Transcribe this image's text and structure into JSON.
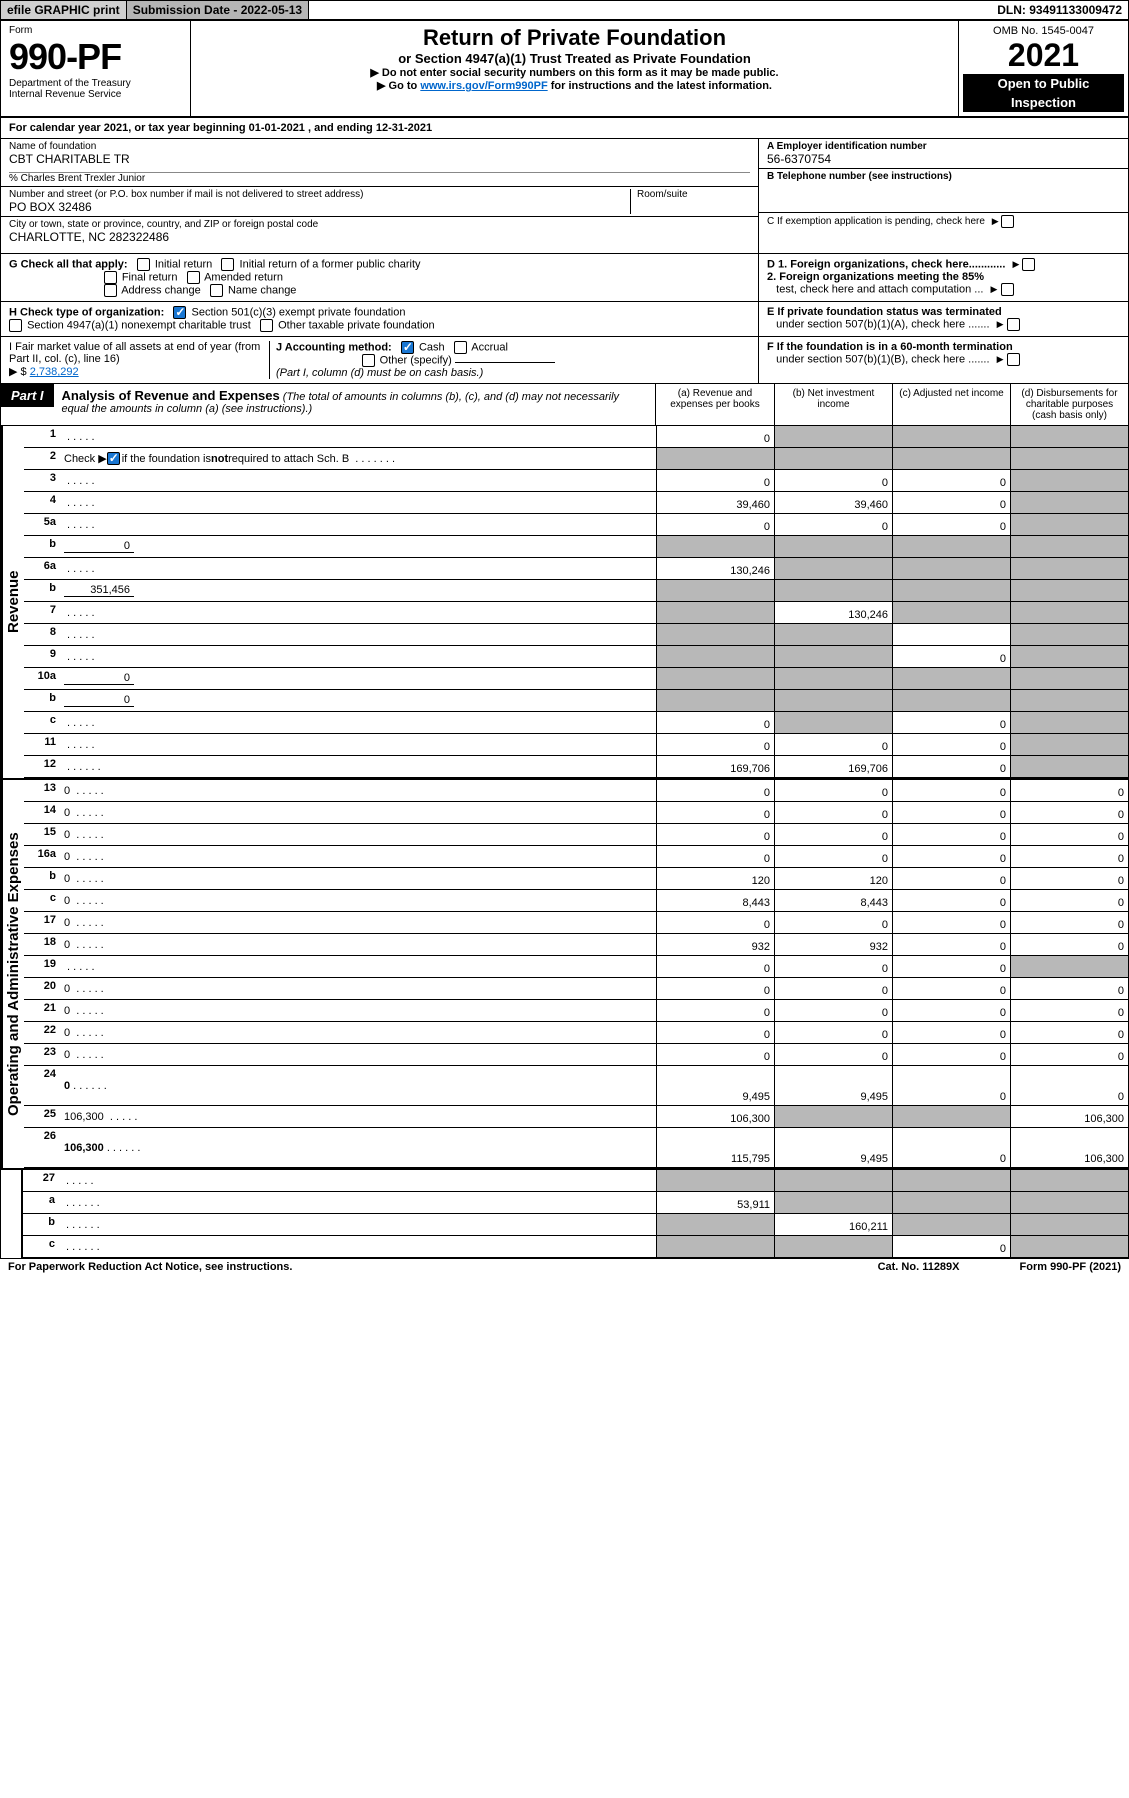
{
  "topbar": {
    "efile": "efile GRAPHIC print",
    "subdate_label": "Submission Date - 2022-05-13",
    "dln": "DLN: 93491133009472"
  },
  "header": {
    "form_word": "Form",
    "form_no": "990-PF",
    "dept": "Department of the Treasury",
    "irs": "Internal Revenue Service",
    "title": "Return of Private Foundation",
    "subtitle": "or Section 4947(a)(1) Trust Treated as Private Foundation",
    "note1": "▶ Do not enter social security numbers on this form as it may be made public.",
    "note2_pre": "▶ Go to ",
    "note2_link": "www.irs.gov/Form990PF",
    "note2_post": " for instructions and the latest information.",
    "omb": "OMB No. 1545-0047",
    "year": "2021",
    "openpub1": "Open to Public",
    "openpub2": "Inspection"
  },
  "calyear": {
    "pre": "For calendar year 2021, or tax year beginning ",
    "begin": "01-01-2021",
    "mid": " , and ending ",
    "end": "12-31-2021"
  },
  "id": {
    "name_lbl": "Name of foundation",
    "name": "CBT CHARITABLE TR",
    "care_of": "% Charles Brent Trexler Junior",
    "addr_lbl": "Number and street (or P.O. box number if mail is not delivered to street address)",
    "addr": "PO BOX 32486",
    "room_lbl": "Room/suite",
    "city_lbl": "City or town, state or province, country, and ZIP or foreign postal code",
    "city": "CHARLOTTE, NC  282322486",
    "ein_lbl": "A Employer identification number",
    "ein": "56-6370754",
    "phone_lbl": "B Telephone number (see instructions)",
    "c_lbl": "C If exemption application is pending, check here"
  },
  "g": {
    "label": "G Check all that apply:",
    "o1": "Initial return",
    "o2": "Initial return of a former public charity",
    "o3": "Final return",
    "o4": "Amended return",
    "o5": "Address change",
    "o6": "Name change"
  },
  "d": {
    "d1": "D 1. Foreign organizations, check here............",
    "d2a": "2. Foreign organizations meeting the 85%",
    "d2b": "test, check here and attach computation ..."
  },
  "h": {
    "label": "H Check type of organization:",
    "o1": "Section 501(c)(3) exempt private foundation",
    "o2": "Section 4947(a)(1) nonexempt charitable trust",
    "o3": "Other taxable private foundation"
  },
  "e": {
    "e1": "E  If private foundation status was terminated",
    "e2": "under section 507(b)(1)(A), check here ......."
  },
  "i": {
    "label": "I Fair market value of all assets at end of year (from Part II, col. (c), line 16)",
    "arrow": "▶ $",
    "amount": "2,738,292"
  },
  "j": {
    "label": "J Accounting method:",
    "o1": "Cash",
    "o2": "Accrual",
    "o3": "Other (specify)",
    "note": "(Part I, column (d) must be on cash basis.)"
  },
  "f": {
    "f1": "F  If the foundation is in a 60-month termination",
    "f2": "under section 507(b)(1)(B), check here ......."
  },
  "part1": {
    "tab": "Part I",
    "title": "Analysis of Revenue and Expenses",
    "paren": " (The total of amounts in columns (b), (c), and (d) may not necessarily equal the amounts in column (a) (see instructions).)",
    "col_a": "(a) Revenue and expenses per books",
    "col_b": "(b) Net investment income",
    "col_c": "(c) Adjusted net income",
    "col_d": "(d) Disbursements for charitable purposes (cash basis only)"
  },
  "side": {
    "rev": "Revenue",
    "exp": "Operating and Administrative Expenses"
  },
  "rows": [
    {
      "n": "1",
      "d": "",
      "a": "0",
      "b": "",
      "c": "",
      "ga": false,
      "gb": true,
      "gc": true,
      "gd": true
    },
    {
      "n": "2",
      "d": "",
      "a": "",
      "b": "",
      "c": "",
      "ga": true,
      "gb": true,
      "gc": true,
      "gd": true,
      "noborder": false,
      "chk": true
    },
    {
      "n": "3",
      "d": "",
      "a": "0",
      "b": "0",
      "c": "0",
      "ga": false,
      "gb": false,
      "gc": false,
      "gd": true
    },
    {
      "n": "4",
      "d": "",
      "a": "39,460",
      "b": "39,460",
      "c": "0",
      "ga": false,
      "gb": false,
      "gc": false,
      "gd": true
    },
    {
      "n": "5a",
      "d": "",
      "a": "0",
      "b": "0",
      "c": "0",
      "ga": false,
      "gb": false,
      "gc": false,
      "gd": true
    },
    {
      "n": "b",
      "d": "",
      "inline": "0",
      "a": "",
      "b": "",
      "c": "",
      "ga": true,
      "gb": true,
      "gc": true,
      "gd": true
    },
    {
      "n": "6a",
      "d": "",
      "a": "130,246",
      "b": "",
      "c": "",
      "ga": false,
      "gb": true,
      "gc": true,
      "gd": true
    },
    {
      "n": "b",
      "d": "",
      "inline": "351,456",
      "a": "",
      "b": "",
      "c": "",
      "ga": true,
      "gb": true,
      "gc": true,
      "gd": true
    },
    {
      "n": "7",
      "d": "",
      "a": "",
      "b": "130,246",
      "c": "",
      "ga": true,
      "gb": false,
      "gc": true,
      "gd": true
    },
    {
      "n": "8",
      "d": "",
      "a": "",
      "b": "",
      "c": "",
      "ga": true,
      "gb": true,
      "gc": false,
      "gd": true
    },
    {
      "n": "9",
      "d": "",
      "a": "",
      "b": "",
      "c": "0",
      "ga": true,
      "gb": true,
      "gc": false,
      "gd": true
    },
    {
      "n": "10a",
      "d": "",
      "inline": "0",
      "a": "",
      "b": "",
      "c": "",
      "ga": true,
      "gb": true,
      "gc": true,
      "gd": true
    },
    {
      "n": "b",
      "d": "",
      "inline": "0",
      "a": "",
      "b": "",
      "c": "",
      "ga": true,
      "gb": true,
      "gc": true,
      "gd": true
    },
    {
      "n": "c",
      "d": "",
      "a": "0",
      "b": "",
      "c": "0",
      "ga": false,
      "gb": true,
      "gc": false,
      "gd": true
    },
    {
      "n": "11",
      "d": "",
      "a": "0",
      "b": "0",
      "c": "0",
      "ga": false,
      "gb": false,
      "gc": false,
      "gd": true
    },
    {
      "n": "12",
      "d": "",
      "a": "169,706",
      "b": "169,706",
      "c": "0",
      "ga": false,
      "gb": false,
      "gc": false,
      "gd": true,
      "bold": true
    }
  ],
  "exp_rows": [
    {
      "n": "13",
      "d": "0",
      "a": "0",
      "b": "0",
      "c": "0"
    },
    {
      "n": "14",
      "d": "0",
      "a": "0",
      "b": "0",
      "c": "0"
    },
    {
      "n": "15",
      "d": "0",
      "a": "0",
      "b": "0",
      "c": "0"
    },
    {
      "n": "16a",
      "d": "0",
      "a": "0",
      "b": "0",
      "c": "0"
    },
    {
      "n": "b",
      "d": "0",
      "a": "120",
      "b": "120",
      "c": "0"
    },
    {
      "n": "c",
      "d": "0",
      "a": "8,443",
      "b": "8,443",
      "c": "0"
    },
    {
      "n": "17",
      "d": "0",
      "a": "0",
      "b": "0",
      "c": "0"
    },
    {
      "n": "18",
      "d": "0",
      "a": "932",
      "b": "932",
      "c": "0"
    },
    {
      "n": "19",
      "d": "",
      "a": "0",
      "b": "0",
      "c": "0",
      "gd": true
    },
    {
      "n": "20",
      "d": "0",
      "a": "0",
      "b": "0",
      "c": "0"
    },
    {
      "n": "21",
      "d": "0",
      "a": "0",
      "b": "0",
      "c": "0"
    },
    {
      "n": "22",
      "d": "0",
      "a": "0",
      "b": "0",
      "c": "0"
    },
    {
      "n": "23",
      "d": "0",
      "a": "0",
      "b": "0",
      "c": "0"
    },
    {
      "n": "24",
      "d": "0",
      "a": "9,495",
      "b": "9,495",
      "c": "0",
      "bold": true,
      "tall": true
    },
    {
      "n": "25",
      "d": "106,300",
      "a": "106,300",
      "b": "",
      "c": "",
      "gb": true,
      "gc": true
    },
    {
      "n": "26",
      "d": "106,300",
      "a": "115,795",
      "b": "9,495",
      "c": "0",
      "bold": true,
      "tall": true
    }
  ],
  "bottom_rows": [
    {
      "n": "27",
      "d": "",
      "a": "",
      "b": "",
      "c": "",
      "ga": true,
      "gb": true,
      "gc": true,
      "gd": true
    },
    {
      "n": "a",
      "d": "",
      "a": "53,911",
      "b": "",
      "c": "",
      "bold": true,
      "gb": true,
      "gc": true,
      "gd": true
    },
    {
      "n": "b",
      "d": "",
      "a": "",
      "b": "160,211",
      "c": "",
      "bold": true,
      "ga": true,
      "gc": true,
      "gd": true
    },
    {
      "n": "c",
      "d": "",
      "a": "",
      "b": "",
      "c": "0",
      "bold": true,
      "ga": true,
      "gb": true,
      "gd": true
    }
  ],
  "footer": {
    "left": "For Paperwork Reduction Act Notice, see instructions.",
    "mid": "Cat. No. 11289X",
    "right": "Form 990-PF (2021)"
  }
}
